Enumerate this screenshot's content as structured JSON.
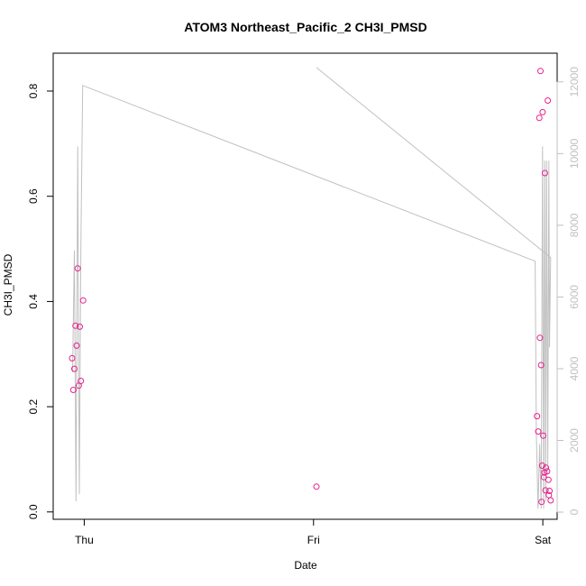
{
  "chart_data": {
    "type": "scatter",
    "title": "ATOM3 Northeast_Pacific_2 CH3I_PMSD",
    "xlabel": "Date",
    "ylabel": "CH3I_PMSD",
    "x_ticks": [
      "Thu",
      "Fri",
      "Sat"
    ],
    "y_ticks": [
      "0.0",
      "0.2",
      "0.4",
      "0.6",
      "0.8"
    ],
    "y2_ticks": [
      "0",
      "2000",
      "4000",
      "6000",
      "8000",
      "10000",
      "12000"
    ],
    "xlim": [
      "Wed 20:45",
      "Sat 01:30"
    ],
    "ylim": [
      -0.014,
      0.872
    ],
    "y2lim": [
      -200,
      12800
    ],
    "grid": false,
    "colors": {
      "points": "#e8208c",
      "line": "#c0c0c0",
      "axes": "#000000"
    },
    "series": [
      {
        "type": "scatter",
        "values": [
          {
            "x": "Wed 22:44",
            "y": 0.292
          },
          {
            "x": "Wed 22:51",
            "y": 0.232
          },
          {
            "x": "Wed 22:58",
            "y": 0.272
          },
          {
            "x": "Wed 23:05",
            "y": 0.354
          },
          {
            "x": "Wed 23:12",
            "y": 0.316
          },
          {
            "x": "Wed 23:19",
            "y": 0.463
          },
          {
            "x": "Wed 23:26",
            "y": 0.24
          },
          {
            "x": "Wed 23:32",
            "y": 0.352
          },
          {
            "x": "Wed 23:39",
            "y": 0.249
          },
          {
            "x": "Wed 23:53",
            "y": 0.402
          },
          {
            "x": "Fri 00:18",
            "y": 0.048
          },
          {
            "x": "Fri 23:24",
            "y": 0.182
          },
          {
            "x": "Fri 23:31",
            "y": 0.153
          },
          {
            "x": "Fri 23:38",
            "y": 0.749
          },
          {
            "x": "Fri 23:42",
            "y": 0.331
          },
          {
            "x": "Fri 23:45",
            "y": 0.838
          },
          {
            "x": "Fri 23:49",
            "y": 0.279
          },
          {
            "x": "Fri 23:52",
            "y": 0.019
          },
          {
            "x": "Fri 23:56",
            "y": 0.088
          },
          {
            "x": "Fri 23:59",
            "y": 0.76
          },
          {
            "x": "Sat 00:03",
            "y": 0.145
          },
          {
            "x": "Sat 00:07",
            "y": 0.066
          },
          {
            "x": "Sat 00:10",
            "y": 0.075
          },
          {
            "x": "Sat 00:13",
            "y": 0.644
          },
          {
            "x": "Sat 00:17",
            "y": 0.041
          },
          {
            "x": "Sat 00:20",
            "y": 0.084
          },
          {
            "x": "Sat 00:27",
            "y": 0.077
          },
          {
            "x": "Sat 00:31",
            "y": 0.782
          },
          {
            "x": "Sat 00:35",
            "y": 0.061
          },
          {
            "x": "Sat 00:38",
            "y": 0.032
          },
          {
            "x": "Sat 00:42",
            "y": 0.04
          },
          {
            "x": "Sat 00:49",
            "y": 0.022
          }
        ]
      },
      {
        "type": "line",
        "axis": "right",
        "values": [
          {
            "x": "Wed 22:47",
            "y": 3900
          },
          {
            "x": "Wed 22:58",
            "y": 7300
          },
          {
            "x": "Wed 23:08",
            "y": 300
          },
          {
            "x": "Wed 23:19",
            "y": 10200
          },
          {
            "x": "Wed 23:29",
            "y": 500
          },
          {
            "x": "Wed 23:39",
            "y": 7400
          },
          {
            "x": "Wed 23:50",
            "y": 11900
          },
          {
            "x": "Fri 23:12",
            "y": 7000
          },
          {
            "x": "Fri 23:19",
            "y": 2200
          },
          {
            "x": "Fri 23:30",
            "y": 100
          },
          {
            "x": "Fri 23:40",
            "y": 1900
          },
          {
            "x": "Fri 23:50",
            "y": 100
          },
          {
            "x": "Fri 23:58",
            "y": 10200
          },
          {
            "x": "Sat 00:05",
            "y": 100
          },
          {
            "x": "Sat 00:12",
            "y": 9800
          },
          {
            "x": "Sat 00:18",
            "y": 300
          },
          {
            "x": "Sat 00:24",
            "y": 9800
          },
          {
            "x": "Sat 00:31",
            "y": 1200
          },
          {
            "x": "Sat 00:38",
            "y": 9800
          },
          {
            "x": "Sat 00:42",
            "y": 4600
          },
          {
            "x": "Sat 00:49",
            "y": 7100
          },
          {
            "x": "Fri 00:18",
            "y": 12400
          }
        ]
      }
    ]
  }
}
